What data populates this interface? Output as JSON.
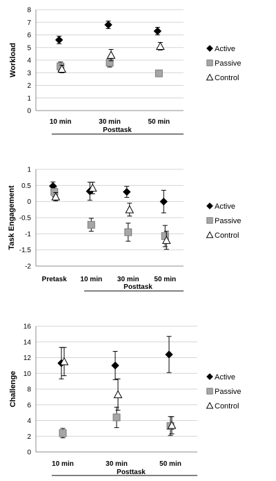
{
  "legend": {
    "active": "Active",
    "passive": "Passive",
    "control": "Control"
  },
  "colors": {
    "active": "#000000",
    "passive": "#a6a6a6",
    "passive_dark": "#7a7a7a",
    "control": "#ffffff",
    "grid": "#d4d4d4"
  },
  "chart_data": [
    {
      "type": "scatter",
      "ylabel": "Workload",
      "group_label": "Posttask",
      "categories": [
        "10 min",
        "30 min",
        "50 min"
      ],
      "ylim": [
        0,
        8
      ],
      "yticks": [
        0,
        1,
        2,
        3,
        4,
        5,
        6,
        7,
        8
      ],
      "grid": true,
      "legend_position": "right",
      "series": [
        {
          "name": "Active",
          "values": [
            5.6,
            6.8,
            6.3
          ],
          "errors": [
            0.3,
            0.3,
            0.3
          ]
        },
        {
          "name": "Passive",
          "values": [
            3.5,
            3.8,
            2.95
          ],
          "errors": [
            0.35,
            0.35,
            0.25
          ]
        },
        {
          "name": "Control",
          "values": [
            3.3,
            4.4,
            5.1
          ],
          "errors": [
            0.3,
            0.45,
            0.3
          ]
        }
      ]
    },
    {
      "type": "scatter",
      "ylabel": "Task Engagement",
      "group_label": "Posttask",
      "categories": [
        "Pretask",
        "10 min",
        "30 min",
        "50 min"
      ],
      "ylim": [
        -2,
        1
      ],
      "yticks": [
        -2,
        -1.5,
        -1,
        -0.5,
        0,
        0.5,
        1
      ],
      "grid": true,
      "legend_position": "right",
      "series": [
        {
          "name": "Active",
          "values": [
            0.48,
            0.32,
            0.3,
            0.0
          ],
          "errors": [
            0.13,
            0.28,
            0.17,
            0.35
          ]
        },
        {
          "name": "Passive",
          "values": [
            0.3,
            -0.72,
            -0.95,
            -1.07
          ],
          "errors": [
            0.15,
            0.2,
            0.28,
            0.33
          ]
        },
        {
          "name": "Control",
          "values": [
            0.15,
            0.42,
            -0.25,
            -1.2
          ],
          "errors": [
            0.13,
            0.18,
            0.2,
            0.28
          ]
        }
      ]
    },
    {
      "type": "scatter",
      "ylabel": "Challenge",
      "group_label": "Posttask",
      "categories": [
        "10 min",
        "30 min",
        "50 min"
      ],
      "ylim": [
        0,
        16
      ],
      "yticks": [
        0,
        2,
        4,
        6,
        8,
        10,
        12,
        14,
        16
      ],
      "grid": true,
      "legend_position": "right",
      "series": [
        {
          "name": "Active",
          "values": [
            11.3,
            11.0,
            12.4
          ],
          "errors": [
            2.0,
            1.8,
            2.3
          ]
        },
        {
          "name": "Passive",
          "values": [
            2.4,
            4.4,
            3.3
          ],
          "errors": [
            0.6,
            1.3,
            1.2
          ]
        },
        {
          "name": "Control",
          "values": [
            11.5,
            7.3,
            3.4
          ],
          "errors": [
            1.8,
            2.0,
            1.1
          ]
        }
      ]
    }
  ]
}
